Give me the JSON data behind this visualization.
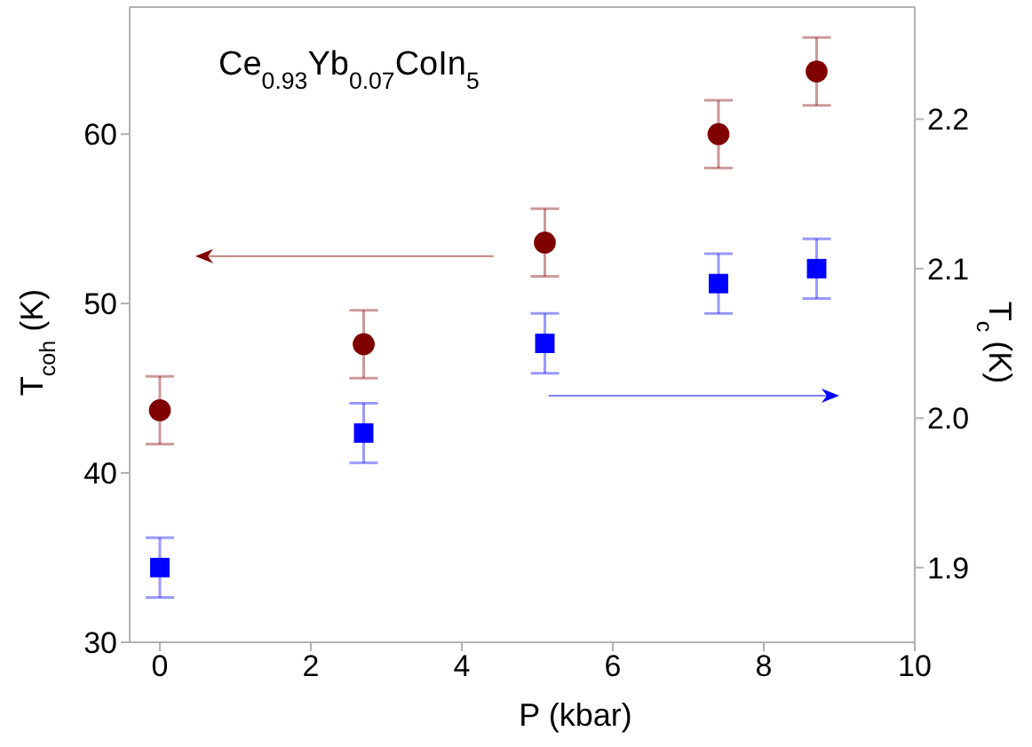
{
  "chart_data": {
    "type": "scatter",
    "title": "Ce$_{0.93}$Yb$_{0.07}$CoIn$_{5}$",
    "xlabel": "P (kbar)",
    "ylabel": "T$_{coh}$ (K)",
    "y2label": "T$_{c}$ (K)",
    "xlim": [
      -0.4,
      10
    ],
    "xticks": [
      0,
      2,
      4,
      6,
      8,
      10
    ],
    "ylim": [
      30,
      67.5
    ],
    "yticks": [
      30,
      40,
      50,
      60
    ],
    "y2lim": [
      1.85,
      2.275
    ],
    "y2ticks": [
      1.9,
      {
        "value": 2,
        "label": "2.0"
      },
      2.1,
      2.2
    ],
    "series": [
      {
        "color": "#800000",
        "marker": "circle",
        "x": [
          0,
          2.7,
          5.1,
          7.4,
          8.7
        ],
        "values": [
          43.7,
          47.6,
          53.6,
          60.0,
          63.7
        ],
        "errors": [
          2,
          2,
          2,
          2,
          2
        ]
      },
      {
        "color": "#0000ff",
        "marker": "square",
        "axis": "y2",
        "x": [
          0,
          2.7,
          5.1,
          7.4,
          8.7
        ],
        "values": [
          1.9,
          1.99,
          2.05,
          2.09,
          2.1
        ],
        "errors": [
          0.02,
          0.02,
          0.02,
          0.02,
          0.02
        ]
      }
    ]
  }
}
